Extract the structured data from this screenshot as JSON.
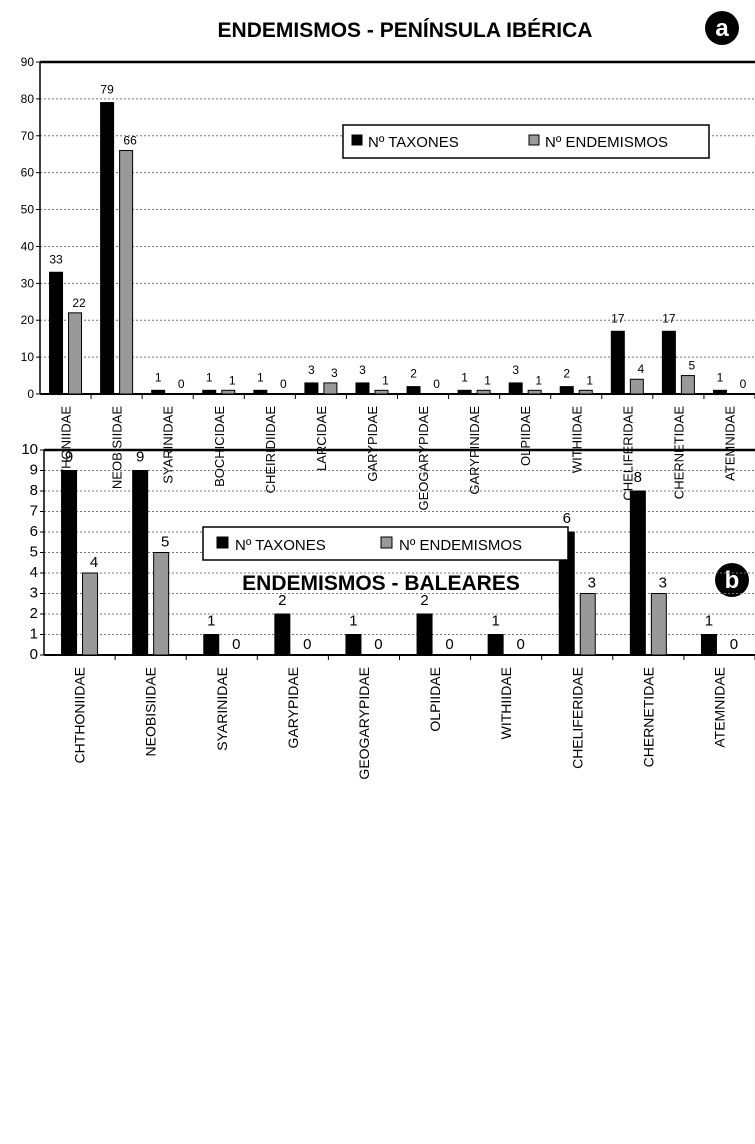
{
  "chart_data": [
    {
      "type": "bar",
      "badge": "a",
      "title": "ENDEMISMOS  -  PENÍNSULA IBÉRICA",
      "categories": [
        "CHTHONIIDAE",
        "NEOBISIIDAE",
        "SYARINIDAE",
        "BOCHICIDAE",
        "CHEIRIDIIDAE",
        "LARCIDAE",
        "GARYPIDAE",
        "GEOGARYPIDAE",
        "GARYPINIDAE",
        "OLPIIDAE",
        "WITHIIDAE",
        "CHELIFERIDAE",
        "CHERNETIDAE",
        "ATEMNIDAE"
      ],
      "series": [
        {
          "name": "Nº TAXONES",
          "color": "#000000",
          "values": [
            33,
            79,
            1,
            1,
            1,
            3,
            3,
            2,
            1,
            3,
            2,
            17,
            17,
            1
          ]
        },
        {
          "name": "Nº ENDEMISMOS",
          "color": "#999999",
          "values": [
            22,
            66,
            0,
            1,
            0,
            3,
            1,
            0,
            1,
            1,
            1,
            4,
            5,
            0
          ]
        }
      ],
      "ylim": [
        0,
        90
      ],
      "yticks": [
        0,
        10,
        20,
        30,
        40,
        50,
        60,
        70,
        80,
        90
      ],
      "grid": true,
      "legend_position": "top-right",
      "xlabel": "",
      "ylabel": ""
    },
    {
      "type": "bar",
      "badge": "b",
      "title": "ENDEMISMOS  -  BALEARES",
      "categories": [
        "CHTHONIIDAE",
        "NEOBISIIDAE",
        "SYARINIDAE",
        "GARYPIDAE",
        "GEOGARYPIDAE",
        "OLPIIDAE",
        "WITHIIDAE",
        "CHELIFERIDAE",
        "CHERNETIDAE",
        "ATEMNIDAE"
      ],
      "series": [
        {
          "name": "Nº TAXONES",
          "color": "#000000",
          "values": [
            9,
            9,
            1,
            2,
            1,
            2,
            1,
            6,
            8,
            1
          ]
        },
        {
          "name": "Nº ENDEMISMOS",
          "color": "#999999",
          "values": [
            4,
            5,
            0,
            0,
            0,
            0,
            0,
            3,
            3,
            0
          ]
        }
      ],
      "ylim": [
        0,
        10
      ],
      "yticks": [
        0,
        1,
        2,
        3,
        4,
        5,
        6,
        7,
        8,
        9,
        10
      ],
      "grid": true,
      "legend_position": "top-center",
      "xlabel": "",
      "ylabel": ""
    }
  ]
}
